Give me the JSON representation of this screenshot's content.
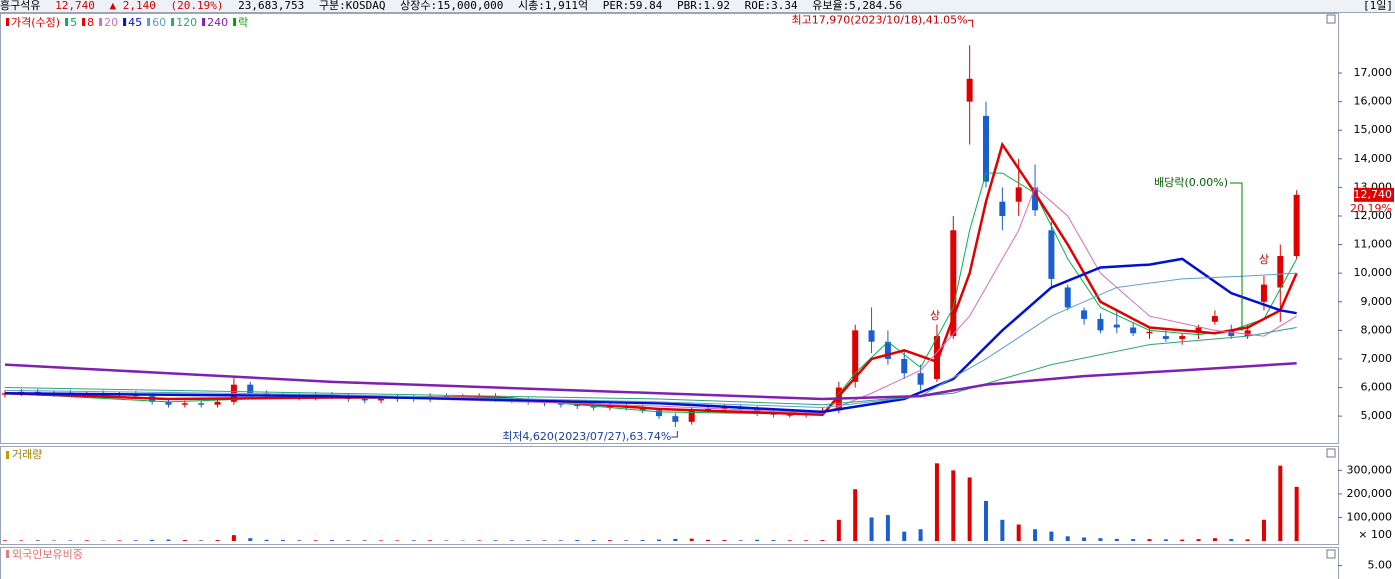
{
  "header": {
    "name": "흥구석유",
    "price": "12,740",
    "change": "▲ 2,140",
    "change_pct": "(20.19%)",
    "volume": "23,683,753",
    "info": [
      "구분:KOSDAQ",
      "상장수:15,000,000",
      "시총:1,911억",
      "PER:59.84",
      "PBR:1.92",
      "ROE:3.34",
      "유보율:5,284.56"
    ],
    "period": "[1일]"
  },
  "chart_data": [
    {
      "type": "candlestick",
      "name": "가격(수정)",
      "up_color": "#e00000",
      "down_color": "#1a5fd0",
      "open": [
        5750,
        5800,
        5850,
        5780,
        5820,
        5760,
        5800,
        5750,
        5780,
        5700,
        5500,
        5400,
        5450,
        5400,
        5500,
        6100,
        5800,
        5750,
        5700,
        5650,
        5750,
        5700,
        5600,
        5550,
        5600,
        5650,
        5600,
        5700,
        5680,
        5650,
        5700,
        5600,
        5550,
        5500,
        5450,
        5400,
        5350,
        5300,
        5350,
        5300,
        5200,
        5000,
        4800,
        5200,
        5250,
        5300,
        5250,
        5100,
        5050,
        5050,
        5100,
        5200,
        6200,
        8000,
        7600,
        7000,
        6500,
        6300,
        7800,
        16000,
        15500,
        12500,
        12500,
        13000,
        11500,
        9500,
        8700,
        8400,
        8200,
        8100,
        7900,
        7800,
        7700,
        7900,
        8300,
        8000,
        7800,
        9000,
        9500,
        10600
      ],
      "high": [
        5900,
        5950,
        5950,
        5900,
        5920,
        5880,
        5900,
        5850,
        5880,
        5800,
        5600,
        5550,
        5550,
        5600,
        6400,
        6200,
        5900,
        5850,
        5800,
        5850,
        5850,
        5800,
        5700,
        5700,
        5750,
        5750,
        5800,
        5800,
        5780,
        5800,
        5800,
        5700,
        5650,
        5600,
        5550,
        5500,
        5450,
        5450,
        5450,
        5400,
        5300,
        5100,
        5300,
        5350,
        5400,
        5400,
        5350,
        5200,
        5150,
        5200,
        5300,
        6200,
        8200,
        8800,
        8000,
        7300,
        6800,
        8200,
        12000,
        17970,
        16000,
        13000,
        14000,
        13800,
        11800,
        9600,
        8800,
        8600,
        8700,
        8300,
        8100,
        8000,
        7900,
        8200,
        8700,
        8200,
        8200,
        9900,
        11000,
        12900
      ],
      "low": [
        5650,
        5700,
        5700,
        5680,
        5660,
        5660,
        5650,
        5650,
        5600,
        5400,
        5300,
        5300,
        5300,
        5300,
        5400,
        5700,
        5650,
        5600,
        5550,
        5550,
        5600,
        5500,
        5450,
        5450,
        5500,
        5500,
        5500,
        5580,
        5550,
        5550,
        5500,
        5450,
        5400,
        5350,
        5300,
        5250,
        5200,
        5200,
        5200,
        5100,
        4900,
        4620,
        4700,
        5100,
        5150,
        5150,
        5000,
        4950,
        4950,
        4950,
        5000,
        5100,
        6000,
        7200,
        6800,
        6300,
        5900,
        6200,
        7700,
        14500,
        13000,
        11500,
        12000,
        12000,
        9500,
        8700,
        8200,
        7900,
        7900,
        7800,
        7700,
        7600,
        7500,
        7700,
        8200,
        7700,
        7700,
        8700,
        8300,
        10500
      ],
      "close": [
        5800,
        5850,
        5780,
        5820,
        5760,
        5800,
        5750,
        5780,
        5700,
        5500,
        5400,
        5450,
        5400,
        5500,
        6100,
        5800,
        5750,
        5700,
        5650,
        5750,
        5700,
        5600,
        5550,
        5600,
        5650,
        5600,
        5700,
        5680,
        5650,
        5700,
        5600,
        5550,
        5500,
        5450,
        5400,
        5350,
        5300,
        5350,
        5300,
        5200,
        5000,
        4800,
        5200,
        5250,
        5300,
        5250,
        5100,
        5050,
        5050,
        5100,
        5200,
        6000,
        8000,
        7600,
        7000,
        6500,
        6100,
        7800,
        11500,
        16800,
        13200,
        12000,
        13000,
        12200,
        9800,
        8800,
        8400,
        8000,
        8100,
        7900,
        7950,
        7700,
        7800,
        8100,
        8500,
        7800,
        8000,
        9600,
        10600,
        12740
      ],
      "series": [
        {
          "name": "5",
          "color": "#00b050",
          "width": 1,
          "x": [
            0,
            10,
            20,
            30,
            40,
            50,
            52,
            54,
            56,
            58,
            59,
            60,
            61,
            63,
            65,
            67,
            70,
            73,
            75,
            77,
            79
          ],
          "values": [
            5800,
            5500,
            5700,
            5650,
            5150,
            5050,
            6500,
            7600,
            6700,
            8800,
            11500,
            13500,
            13500,
            12800,
            10500,
            8800,
            8000,
            7850,
            8000,
            8400,
            10500
          ]
        },
        {
          "name": "8",
          "color": "#e00000",
          "width": 2.5,
          "x": [
            0,
            10,
            20,
            30,
            40,
            45,
            50,
            53,
            55,
            57,
            59,
            60,
            61,
            63,
            65,
            67,
            70,
            74,
            76,
            78,
            79
          ],
          "values": [
            5800,
            5600,
            5650,
            5650,
            5250,
            5150,
            5050,
            7000,
            7300,
            6900,
            10000,
            12500,
            14500,
            12800,
            11000,
            9000,
            8100,
            7900,
            8100,
            8700,
            10000
          ]
        },
        {
          "name": "20",
          "color": "#d070c0",
          "width": 1,
          "x": [
            0,
            20,
            40,
            50,
            53,
            56,
            59,
            62,
            63,
            65,
            67,
            70,
            74,
            77,
            79
          ],
          "values": [
            5800,
            5700,
            5350,
            5100,
            5800,
            6600,
            8500,
            11500,
            13000,
            12000,
            10000,
            8500,
            8000,
            7800,
            8500
          ]
        },
        {
          "name": "45",
          "color": "#0010d0",
          "width": 2.5,
          "x": [
            0,
            20,
            40,
            50,
            55,
            58,
            61,
            64,
            67,
            70,
            72,
            75,
            78,
            79
          ],
          "values": [
            5800,
            5700,
            5450,
            5150,
            5600,
            6300,
            8000,
            9500,
            10200,
            10300,
            10500,
            9300,
            8700,
            8600
          ]
        },
        {
          "name": "60",
          "color": "#5aa0c8",
          "width": 1,
          "x": [
            0,
            20,
            40,
            50,
            56,
            60,
            64,
            68,
            72,
            76,
            79
          ],
          "values": [
            5900,
            5750,
            5500,
            5300,
            5700,
            7000,
            8500,
            9500,
            9800,
            9900,
            10000
          ]
        },
        {
          "name": "120",
          "color": "#30a080",
          "width": 1,
          "x": [
            0,
            20,
            40,
            50,
            58,
            64,
            70,
            76,
            79
          ],
          "values": [
            6000,
            5800,
            5600,
            5400,
            5800,
            6800,
            7500,
            7800,
            8100
          ]
        },
        {
          "name": "240",
          "color": "#8020b0",
          "width": 2.5,
          "x": [
            0,
            10,
            20,
            30,
            40,
            50,
            56,
            60,
            66,
            72,
            79
          ],
          "values": [
            6800,
            6500,
            6200,
            6000,
            5800,
            5600,
            5700,
            6100,
            6400,
            6600,
            6850
          ]
        }
      ],
      "legend_extra": {
        "name": "락",
        "color": "#00a000"
      },
      "ylim": [
        4060,
        19030
      ],
      "yticks": [
        {
          "value": 5000,
          "label": "5,000"
        },
        {
          "value": 6000,
          "label": "6,000"
        },
        {
          "value": 7000,
          "label": "7,000"
        },
        {
          "value": 8000,
          "label": "8,000"
        },
        {
          "value": 9000,
          "label": "9,000"
        },
        {
          "value": 10000,
          "label": "10,000"
        },
        {
          "value": 11000,
          "label": "11,000"
        },
        {
          "value": 12000,
          "label": "12,000"
        },
        {
          "value": 13000,
          "label": "13,000"
        },
        {
          "value": 14000,
          "label": "14,000"
        },
        {
          "value": 15000,
          "label": "15,000"
        },
        {
          "value": 16000,
          "label": "16,000"
        },
        {
          "value": 17000,
          "label": "17,000"
        }
      ],
      "annotations": {
        "high": "최고17,970(2023/10/18),41.05%",
        "low": "최저4,620(2023/07/27),63.74%",
        "dividend": "배당락(0.00%)",
        "limit_up_1": "상",
        "limit_up_2": "상"
      },
      "last_price": {
        "value": 12740,
        "label": "12,740"
      },
      "last_change_label": "20.19%"
    },
    {
      "type": "bar",
      "title": "거래량",
      "values": [
        3000,
        2500,
        3000,
        2000,
        2500,
        3000,
        2000,
        2500,
        3000,
        5000,
        6000,
        4000,
        3000,
        4000,
        25000,
        12000,
        5000,
        4000,
        3000,
        3000,
        4000,
        3000,
        3000,
        2500,
        2500,
        3000,
        3000,
        2500,
        2000,
        2500,
        3000,
        3000,
        3000,
        3000,
        3000,
        4000,
        4000,
        3500,
        3000,
        4000,
        6000,
        9000,
        10000,
        5000,
        4000,
        3000,
        5000,
        4000,
        3000,
        3000,
        4000,
        90000,
        220000,
        100000,
        110000,
        40000,
        50000,
        330000,
        300000,
        270000,
        170000,
        90000,
        70000,
        50000,
        40000,
        20000,
        15000,
        12000,
        9000,
        8000,
        8000,
        7000,
        6000,
        8000,
        12000,
        8000,
        7000,
        90000,
        320000,
        230000
      ],
      "ylim": [
        0,
        378000
      ],
      "yticks": [
        {
          "value": 100000,
          "label": "100,000"
        },
        {
          "value": 200000,
          "label": "200,000"
        },
        {
          "value": 300000,
          "label": "300,000"
        }
      ],
      "unit_label": "× 100"
    },
    {
      "type": "line",
      "title": "외국인보유비중",
      "ylim": [
        3,
        6.3
      ],
      "yticks": [
        {
          "value": 5,
          "label": "5.00"
        }
      ]
    }
  ]
}
